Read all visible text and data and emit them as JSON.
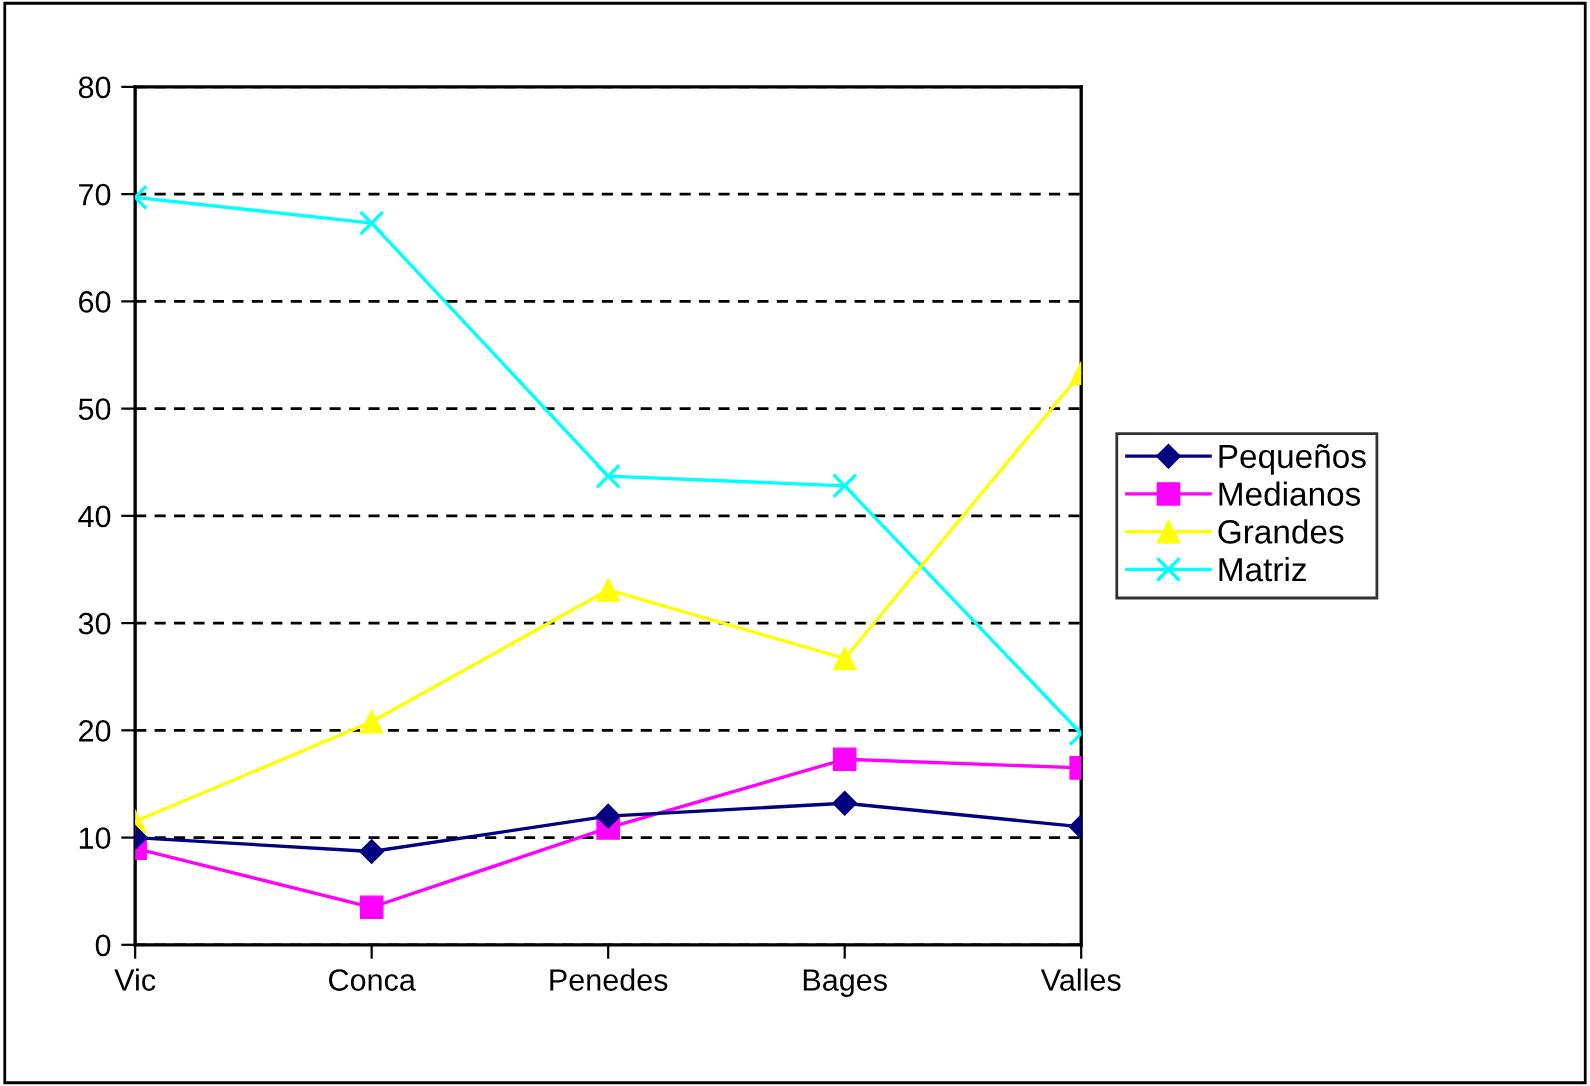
{
  "chart_data": {
    "type": "line",
    "categories": [
      "Vic",
      "Conca",
      "Penedes",
      "Bages",
      "Valles"
    ],
    "series": [
      {
        "name": "Pequeños",
        "color": "#000080",
        "marker": "diamond",
        "values": [
          10,
          8.7,
          12,
          13.2,
          11
        ]
      },
      {
        "name": "Medianos",
        "color": "#ff00ff",
        "marker": "square",
        "values": [
          9,
          3.5,
          10.9,
          17.3,
          16.5
        ]
      },
      {
        "name": "Grandes",
        "color": "#ffff00",
        "marker": "triangle",
        "values": [
          11.5,
          20.8,
          33.1,
          26.7,
          53.3
        ]
      },
      {
        "name": "Matriz",
        "color": "#00ffff",
        "marker": "cross",
        "values": [
          69.7,
          67.3,
          43.7,
          42.8,
          19.7
        ]
      }
    ],
    "ylim": [
      0,
      80
    ],
    "yticks": [
      0,
      10,
      20,
      30,
      40,
      50,
      60,
      70,
      80
    ],
    "grid": "y",
    "legend": "right",
    "line_style": "solid"
  }
}
